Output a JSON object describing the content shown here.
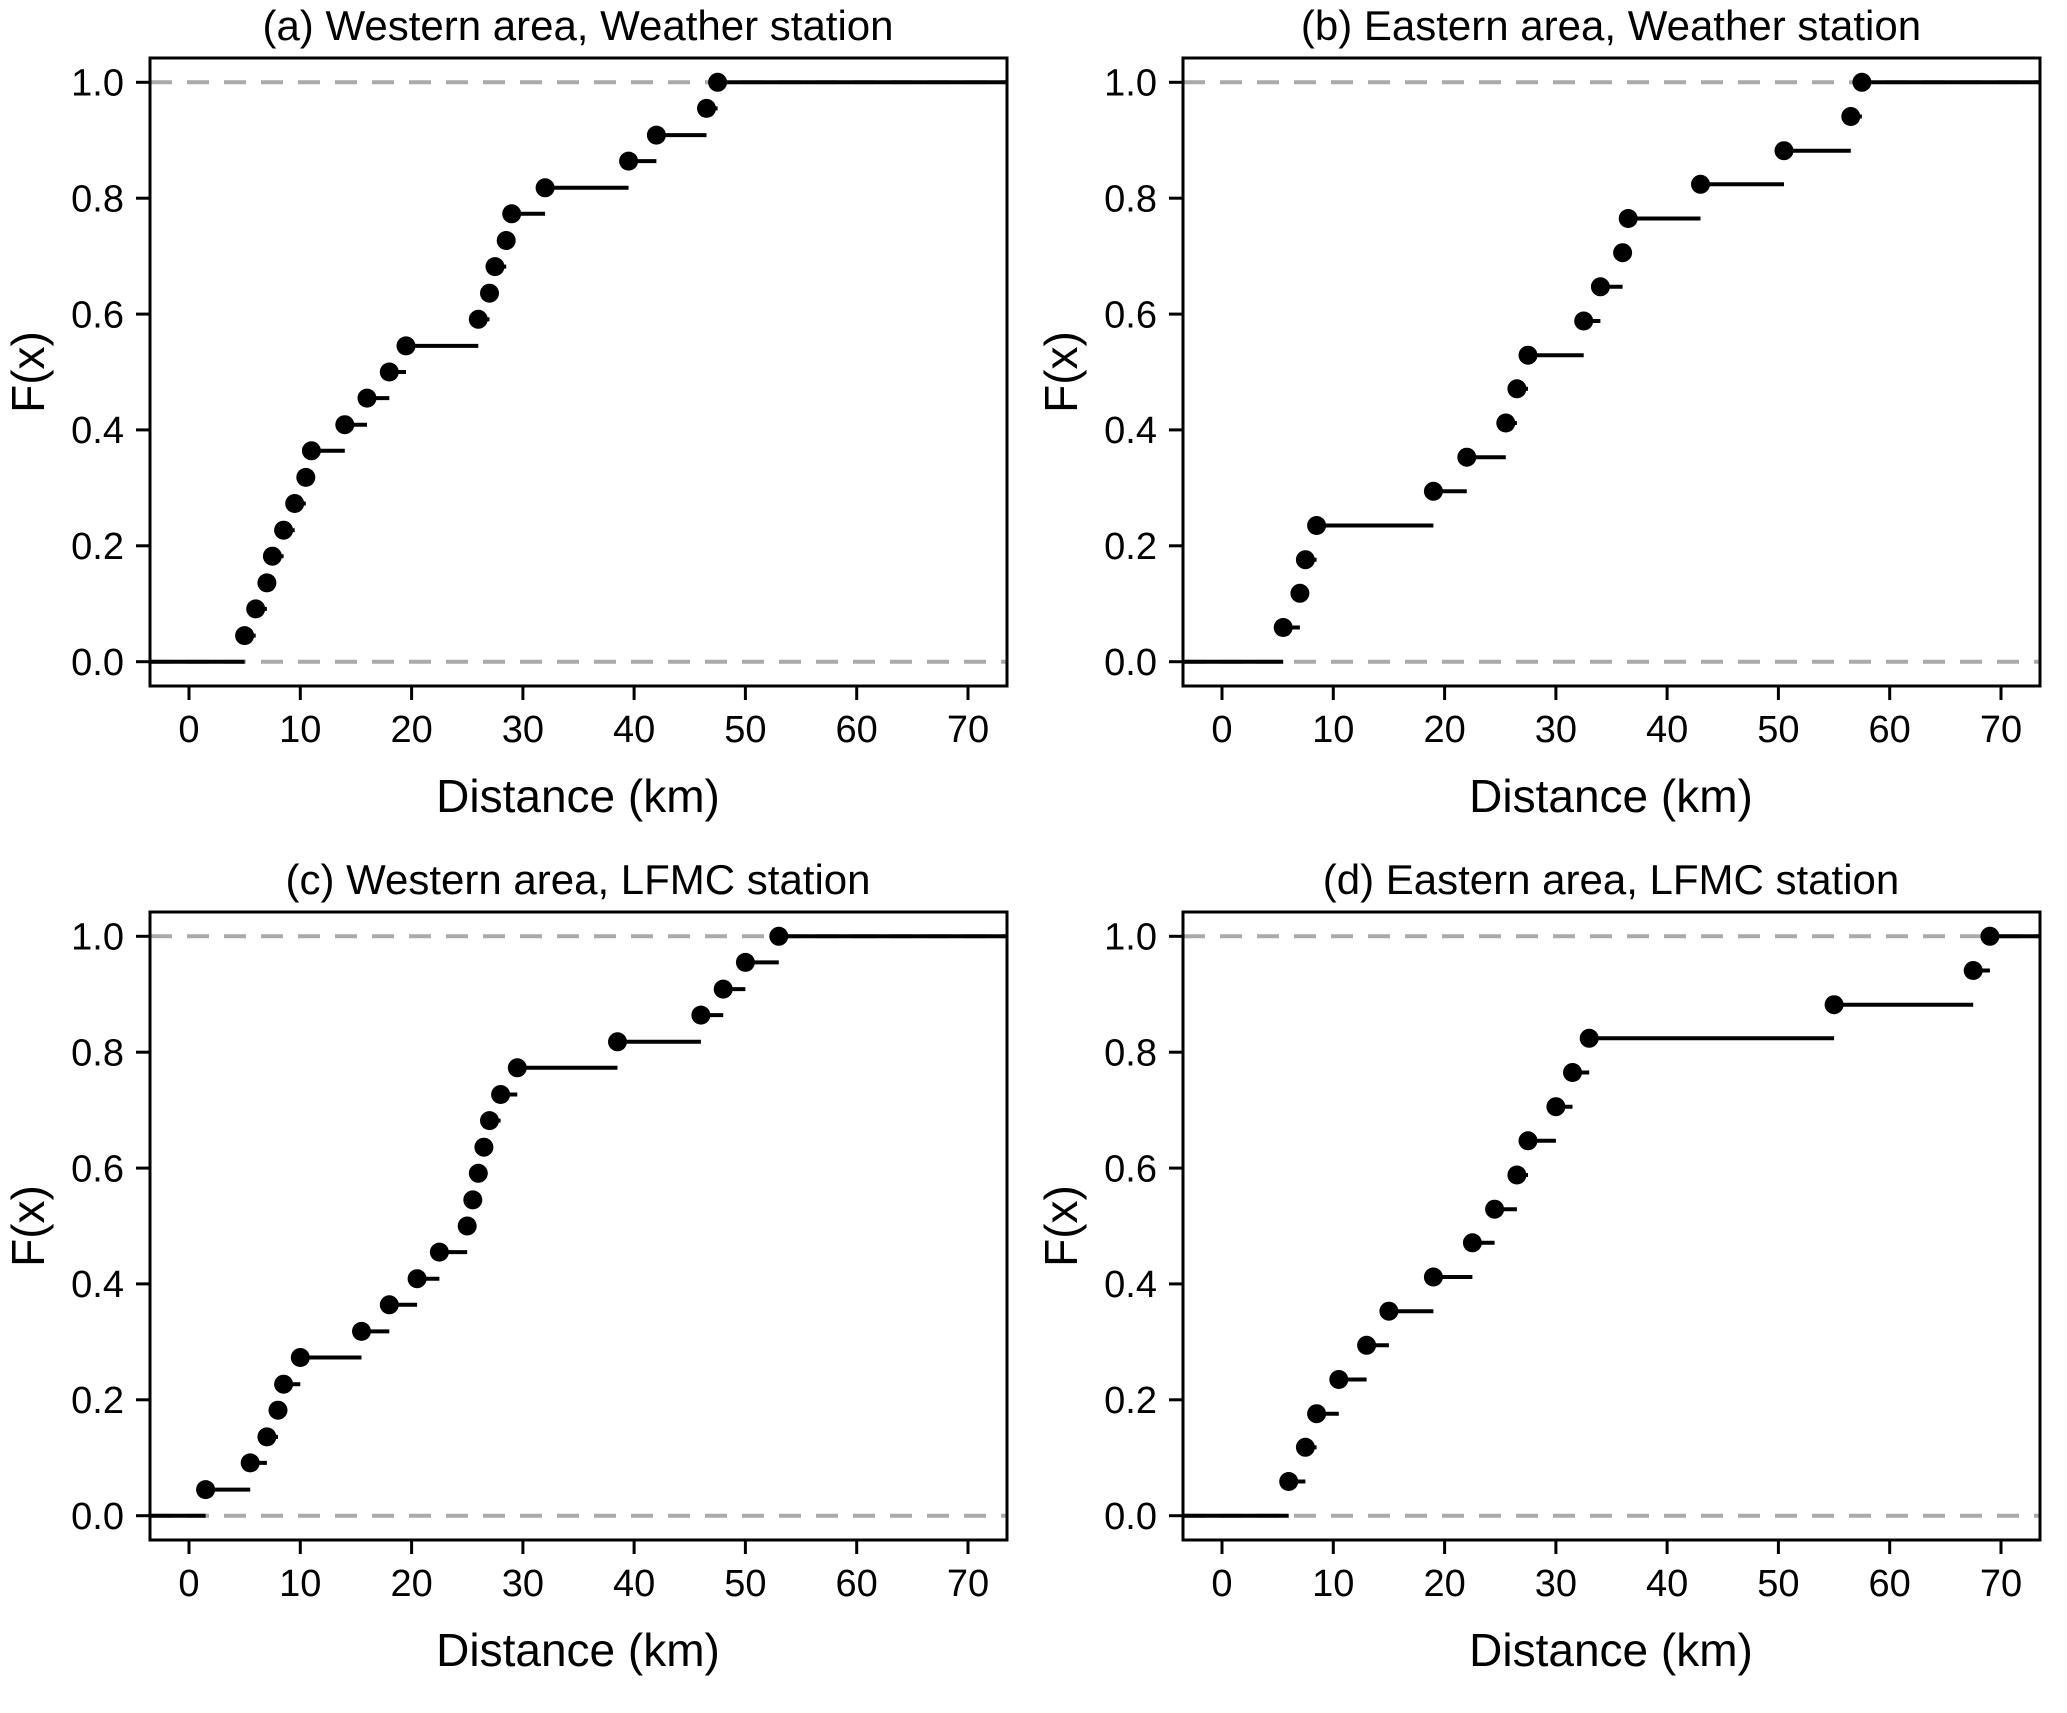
{
  "chart_data": [
    {
      "type": "line",
      "subtype": "ecdf-step",
      "panel": "a",
      "title": "(a) Western area, Weather station",
      "xlabel": "Distance (km)",
      "ylabel": "F(x)",
      "xlim": [
        -3.5,
        73.5
      ],
      "ylim": [
        -0.042,
        1.042
      ],
      "xticks": [
        0,
        10,
        20,
        30,
        40,
        50,
        60,
        70
      ],
      "yticks": [
        "0.0",
        "0.2",
        "0.4",
        "0.6",
        "0.8",
        "1.0"
      ],
      "grid": false,
      "legend": "none",
      "ref_lines": [
        0,
        1
      ],
      "ref_color": "#aaaaaa",
      "line_color": "#000000",
      "n": 22,
      "x": [
        5,
        6,
        7,
        7.5,
        8.5,
        9.5,
        10.5,
        11,
        14,
        16,
        18,
        19.5,
        26,
        27,
        27.5,
        28.5,
        29,
        32,
        39.5,
        42,
        46.5,
        47.5
      ],
      "F": [
        0.045,
        0.091,
        0.136,
        0.182,
        0.227,
        0.273,
        0.318,
        0.364,
        0.409,
        0.455,
        0.5,
        0.545,
        0.591,
        0.636,
        0.682,
        0.727,
        0.773,
        0.818,
        0.864,
        0.909,
        0.955,
        1.0
      ]
    },
    {
      "type": "line",
      "subtype": "ecdf-step",
      "panel": "b",
      "title": "(b) Eastern area, Weather station",
      "xlabel": "Distance (km)",
      "ylabel": "F(x)",
      "xlim": [
        -3.5,
        73.5
      ],
      "ylim": [
        -0.042,
        1.042
      ],
      "xticks": [
        0,
        10,
        20,
        30,
        40,
        50,
        60,
        70
      ],
      "yticks": [
        "0.0",
        "0.2",
        "0.4",
        "0.6",
        "0.8",
        "1.0"
      ],
      "grid": false,
      "legend": "none",
      "ref_lines": [
        0,
        1
      ],
      "ref_color": "#aaaaaa",
      "line_color": "#000000",
      "n": 17,
      "x": [
        5.5,
        7,
        7.5,
        8.5,
        19,
        22,
        25.5,
        26.5,
        27.5,
        32.5,
        34,
        36,
        36.5,
        43,
        50.5,
        56.5,
        57.5
      ],
      "F": [
        0.059,
        0.118,
        0.176,
        0.235,
        0.294,
        0.353,
        0.412,
        0.471,
        0.529,
        0.588,
        0.647,
        0.706,
        0.765,
        0.824,
        0.882,
        0.941,
        1.0
      ]
    },
    {
      "type": "line",
      "subtype": "ecdf-step",
      "panel": "c",
      "title": "(c) Western area, LFMC station",
      "xlabel": "Distance (km)",
      "ylabel": "F(x)",
      "xlim": [
        -3.5,
        73.5
      ],
      "ylim": [
        -0.042,
        1.042
      ],
      "xticks": [
        0,
        10,
        20,
        30,
        40,
        50,
        60,
        70
      ],
      "yticks": [
        "0.0",
        "0.2",
        "0.4",
        "0.6",
        "0.8",
        "1.0"
      ],
      "grid": false,
      "legend": "none",
      "ref_lines": [
        0,
        1
      ],
      "ref_color": "#aaaaaa",
      "line_color": "#000000",
      "n": 22,
      "x": [
        1.5,
        5.5,
        7,
        8,
        8.5,
        10,
        15.5,
        18,
        20.5,
        22.5,
        25,
        25.5,
        26,
        26.5,
        27,
        28,
        29.5,
        38.5,
        46,
        48,
        50,
        53
      ],
      "F": [
        0.045,
        0.091,
        0.136,
        0.182,
        0.227,
        0.273,
        0.318,
        0.364,
        0.409,
        0.455,
        0.5,
        0.545,
        0.591,
        0.636,
        0.682,
        0.727,
        0.773,
        0.818,
        0.864,
        0.909,
        0.955,
        1.0
      ]
    },
    {
      "type": "line",
      "subtype": "ecdf-step",
      "panel": "d",
      "title": "(d) Eastern area, LFMC station",
      "xlabel": "Distance (km)",
      "ylabel": "F(x)",
      "xlim": [
        -3.5,
        73.5
      ],
      "ylim": [
        -0.042,
        1.042
      ],
      "xticks": [
        0,
        10,
        20,
        30,
        40,
        50,
        60,
        70
      ],
      "yticks": [
        "0.0",
        "0.2",
        "0.4",
        "0.6",
        "0.8",
        "1.0"
      ],
      "grid": false,
      "legend": "none",
      "ref_lines": [
        0,
        1
      ],
      "ref_color": "#aaaaaa",
      "line_color": "#000000",
      "n": 17,
      "x": [
        6,
        7.5,
        8.5,
        10.5,
        13,
        15,
        19,
        22.5,
        24.5,
        26.5,
        27.5,
        30,
        31.5,
        33,
        55,
        67.5,
        69
      ],
      "F": [
        0.059,
        0.118,
        0.176,
        0.235,
        0.294,
        0.353,
        0.412,
        0.471,
        0.529,
        0.588,
        0.647,
        0.706,
        0.765,
        0.824,
        0.882,
        0.941,
        1.0
      ]
    }
  ]
}
